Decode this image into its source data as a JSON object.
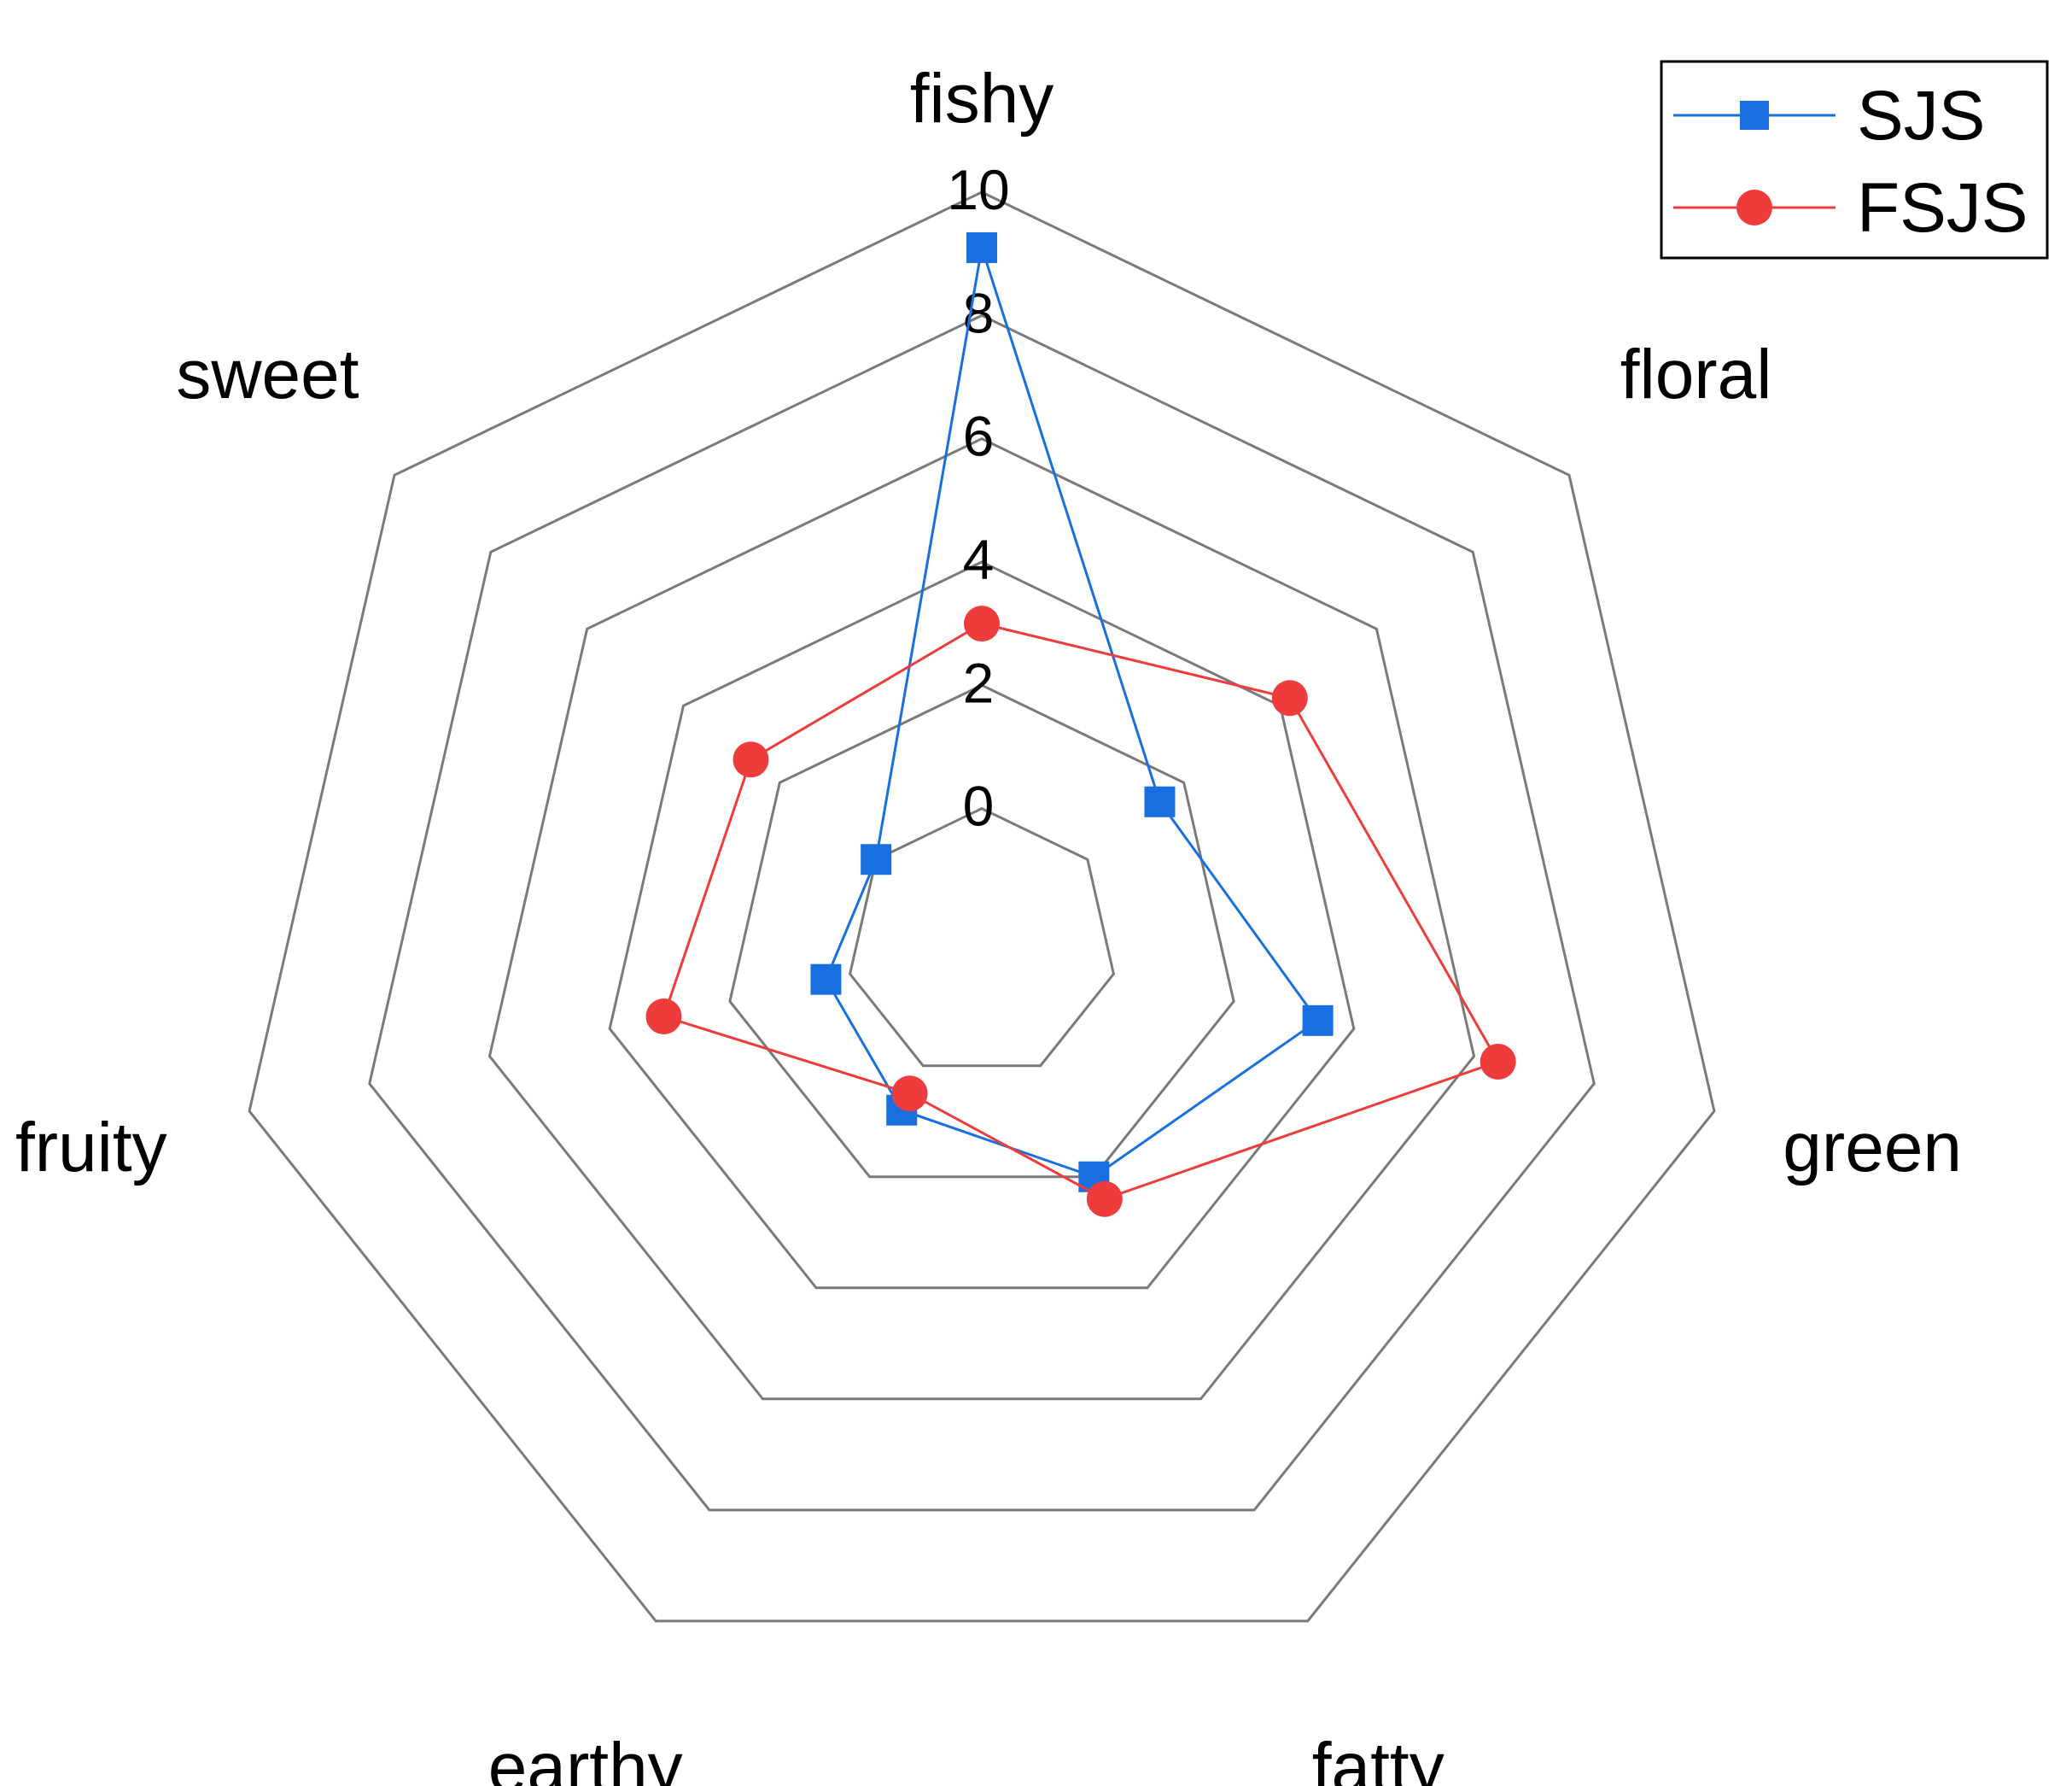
{
  "chart_data": {
    "type": "radar",
    "axes": [
      "fishy",
      "floral",
      "green",
      "fatty",
      "earthy",
      "fruity",
      "sweet"
    ],
    "r_ticks": [
      "0",
      "2",
      "4",
      "6",
      "8",
      "10"
    ],
    "rlim": [
      0,
      10
    ],
    "grid": true,
    "legend_position": "top-right",
    "series": [
      {
        "name": "SJS",
        "color": "#1a6fe0",
        "marker": "square",
        "values": [
          9.1,
          1.5,
          3.4,
          2.0,
          0.8,
          0.4,
          0.0
        ]
      },
      {
        "name": "FSJS",
        "color": "#ee3c3c",
        "marker": "circle",
        "values": [
          3.0,
          4.2,
          6.4,
          2.4,
          0.5,
          3.1,
          2.6
        ]
      }
    ]
  }
}
